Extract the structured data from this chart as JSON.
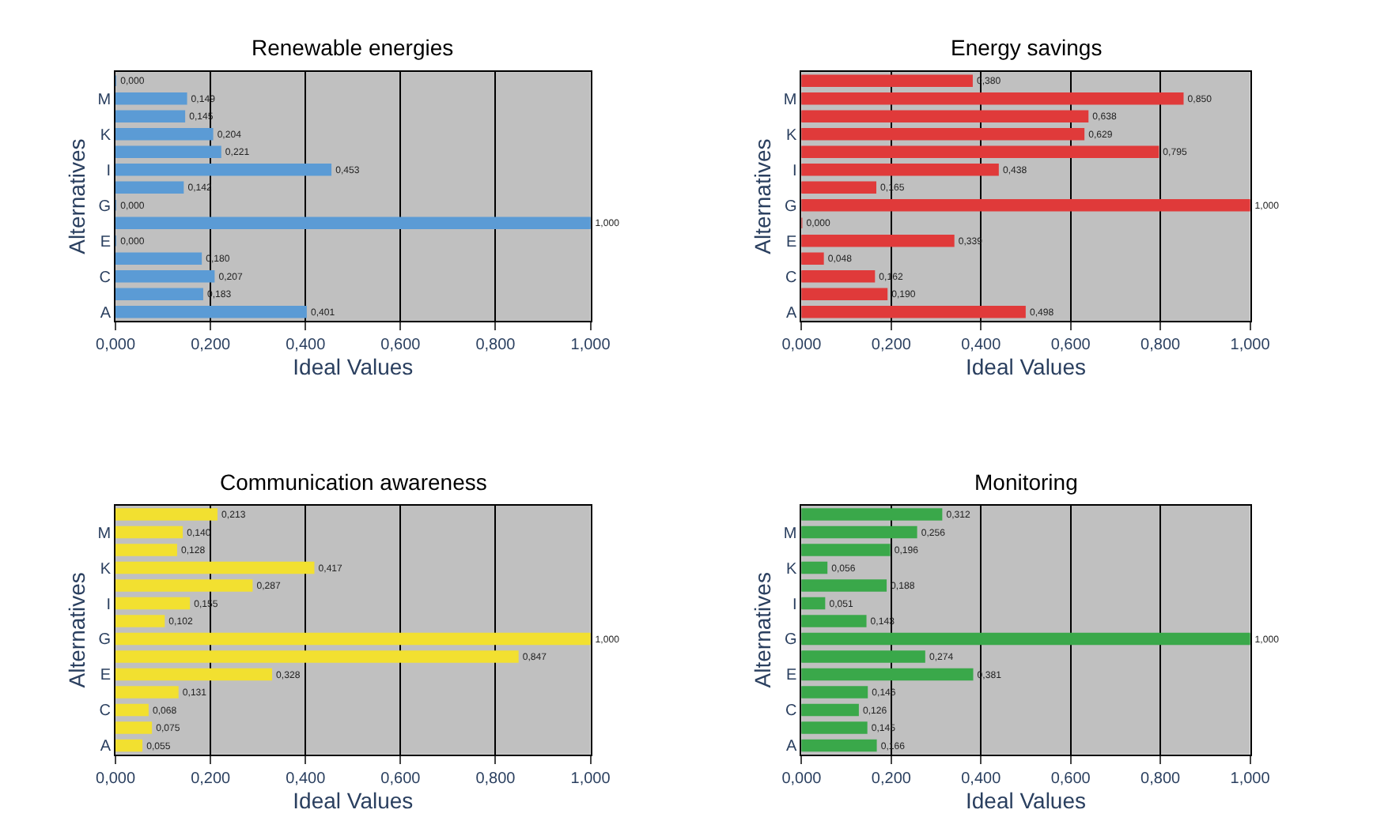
{
  "chart_data": [
    {
      "type": "bar",
      "orientation": "horizontal",
      "title": "Renewable energies",
      "xlabel": "Ideal Values",
      "ylabel": "Alternatives",
      "categories": [
        null,
        "M",
        null,
        "K",
        null,
        "I",
        null,
        "G",
        null,
        "E",
        null,
        "C",
        null,
        "A"
      ],
      "values": [
        0.0,
        0.149,
        0.145,
        0.204,
        0.221,
        0.453,
        0.142,
        0.0,
        1.0,
        0.0,
        0.18,
        0.207,
        0.183,
        0.401
      ],
      "value_labels": [
        "0,000",
        "0,149",
        "0,145",
        "0,204",
        "0,221",
        "0,453",
        "0,142",
        "0,000",
        "1,000",
        "0,000",
        "0,180",
        "0,207",
        "0,183",
        "0,401"
      ],
      "color": "#5b9bd5",
      "xlim": [
        0,
        1
      ],
      "xticks": [
        {
          "value": 0,
          "label": "0,000"
        },
        {
          "value": 0.2,
          "label": "0,200"
        },
        {
          "value": 0.4,
          "label": "0,400"
        },
        {
          "value": 0.6,
          "label": "0,600"
        },
        {
          "value": 0.8,
          "label": "0,800"
        },
        {
          "value": 1,
          "label": "1,000"
        }
      ],
      "grid": "x"
    },
    {
      "type": "bar",
      "orientation": "horizontal",
      "title": "Energy savings",
      "xlabel": "Ideal Values",
      "ylabel": "Alternatives",
      "categories": [
        null,
        "M",
        null,
        "K",
        null,
        "I",
        null,
        "G",
        null,
        "E",
        null,
        "C",
        null,
        "A"
      ],
      "values": [
        0.38,
        0.85,
        0.638,
        0.629,
        0.795,
        0.438,
        0.165,
        1.0,
        0.0,
        0.339,
        0.048,
        0.162,
        0.19,
        0.498
      ],
      "value_labels": [
        "0,380",
        "0,850",
        "0,638",
        "0,629",
        "0,795",
        "0,438",
        "0,165",
        "1,000",
        "0,000",
        "0,339",
        "0,048",
        "0,162",
        "0,190",
        "0,498"
      ],
      "color": "#e03a3a",
      "xlim": [
        0,
        1
      ],
      "xticks": [
        {
          "value": 0,
          "label": "0,000"
        },
        {
          "value": 0.2,
          "label": "0,200"
        },
        {
          "value": 0.4,
          "label": "0,400"
        },
        {
          "value": 0.6,
          "label": "0,600"
        },
        {
          "value": 0.8,
          "label": "0,800"
        },
        {
          "value": 1,
          "label": "1,000"
        }
      ],
      "grid": "x"
    },
    {
      "type": "bar",
      "orientation": "horizontal",
      "title": "Communication awareness",
      "xlabel": "Ideal Values",
      "ylabel": "Alternatives",
      "categories": [
        null,
        "M",
        null,
        "K",
        null,
        "I",
        null,
        "G",
        null,
        "E",
        null,
        "C",
        null,
        "A"
      ],
      "values": [
        0.213,
        0.14,
        0.128,
        0.417,
        0.287,
        0.155,
        0.102,
        1.0,
        0.847,
        0.328,
        0.131,
        0.068,
        0.075,
        0.055
      ],
      "value_labels": [
        "0,213",
        "0,140",
        "0,128",
        "0,417",
        "0,287",
        "0,155",
        "0,102",
        "1,000",
        "0,847",
        "0,328",
        "0,131",
        "0,068",
        "0,075",
        "0,055"
      ],
      "color": "#f2e030",
      "xlim": [
        0,
        1
      ],
      "xticks": [
        {
          "value": 0,
          "label": "0,000"
        },
        {
          "value": 0.2,
          "label": "0,200"
        },
        {
          "value": 0.4,
          "label": "0,400"
        },
        {
          "value": 0.6,
          "label": "0,600"
        },
        {
          "value": 0.8,
          "label": "0,800"
        },
        {
          "value": 1,
          "label": "1,000"
        }
      ],
      "grid": "x"
    },
    {
      "type": "bar",
      "orientation": "horizontal",
      "title": "Monitoring",
      "xlabel": "Ideal Values",
      "ylabel": "Alternatives",
      "categories": [
        null,
        "M",
        null,
        "K",
        null,
        "I",
        null,
        "G",
        null,
        "E",
        null,
        "C",
        null,
        "A"
      ],
      "values": [
        0.312,
        0.256,
        0.196,
        0.056,
        0.188,
        0.051,
        0.143,
        1.0,
        0.274,
        0.381,
        0.146,
        0.126,
        0.145,
        0.166
      ],
      "value_labels": [
        "0,312",
        "0,256",
        "0,196",
        "0,056",
        "0,188",
        "0,051",
        "0,143",
        "1,000",
        "0,274",
        "0,381",
        "0,146",
        "0,126",
        "0,145",
        "0,166"
      ],
      "color": "#3aa84a",
      "xlim": [
        0,
        1
      ],
      "xticks": [
        {
          "value": 0,
          "label": "0,000"
        },
        {
          "value": 0.2,
          "label": "0,200"
        },
        {
          "value": 0.4,
          "label": "0,400"
        },
        {
          "value": 0.6,
          "label": "0,600"
        },
        {
          "value": 0.8,
          "label": "0,800"
        },
        {
          "value": 1,
          "label": "1,000"
        }
      ],
      "grid": "x"
    }
  ]
}
